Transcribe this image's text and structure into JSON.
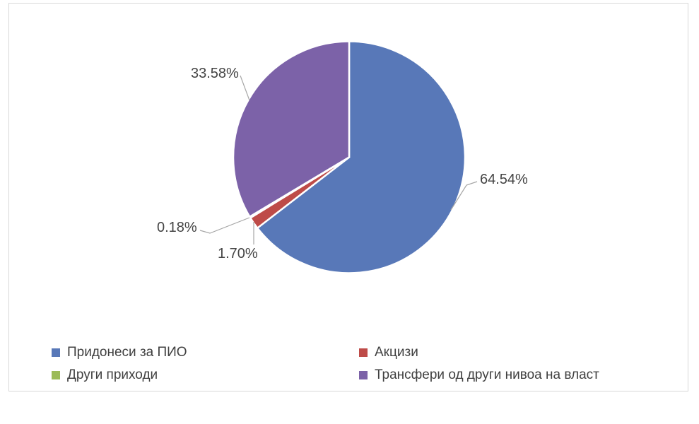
{
  "chart_data": {
    "type": "pie",
    "title": "",
    "legend_position": "bottom",
    "data_labels": "percent-outside-with-leader-lines",
    "start_angle_deg": 0,
    "direction": "clockwise",
    "slice_border_color": "#ffffff",
    "leader_line_color": "#a6a6a6",
    "chart_border_color": "#d8d8d8",
    "slices": [
      {
        "id": "pridonesi-za-pio",
        "label": "Придонеси за ПИО",
        "value": 64.54,
        "display_label": "64.54%",
        "color": "#5878b8"
      },
      {
        "id": "akcizi",
        "label": "Акцизи",
        "value": 1.7,
        "display_label": "1.70%",
        "color": "#be4b48"
      },
      {
        "id": "drugi-prihodi",
        "label": "Други приходи",
        "value": 0.18,
        "display_label": "0.18%",
        "color": "#9cbb58"
      },
      {
        "id": "transferi-od-drugi-nivoa-na-vlast",
        "label": "Трансфери од други нивоа на власт",
        "value": 33.58,
        "display_label": "33.58%",
        "color": "#7c62a8"
      }
    ]
  }
}
